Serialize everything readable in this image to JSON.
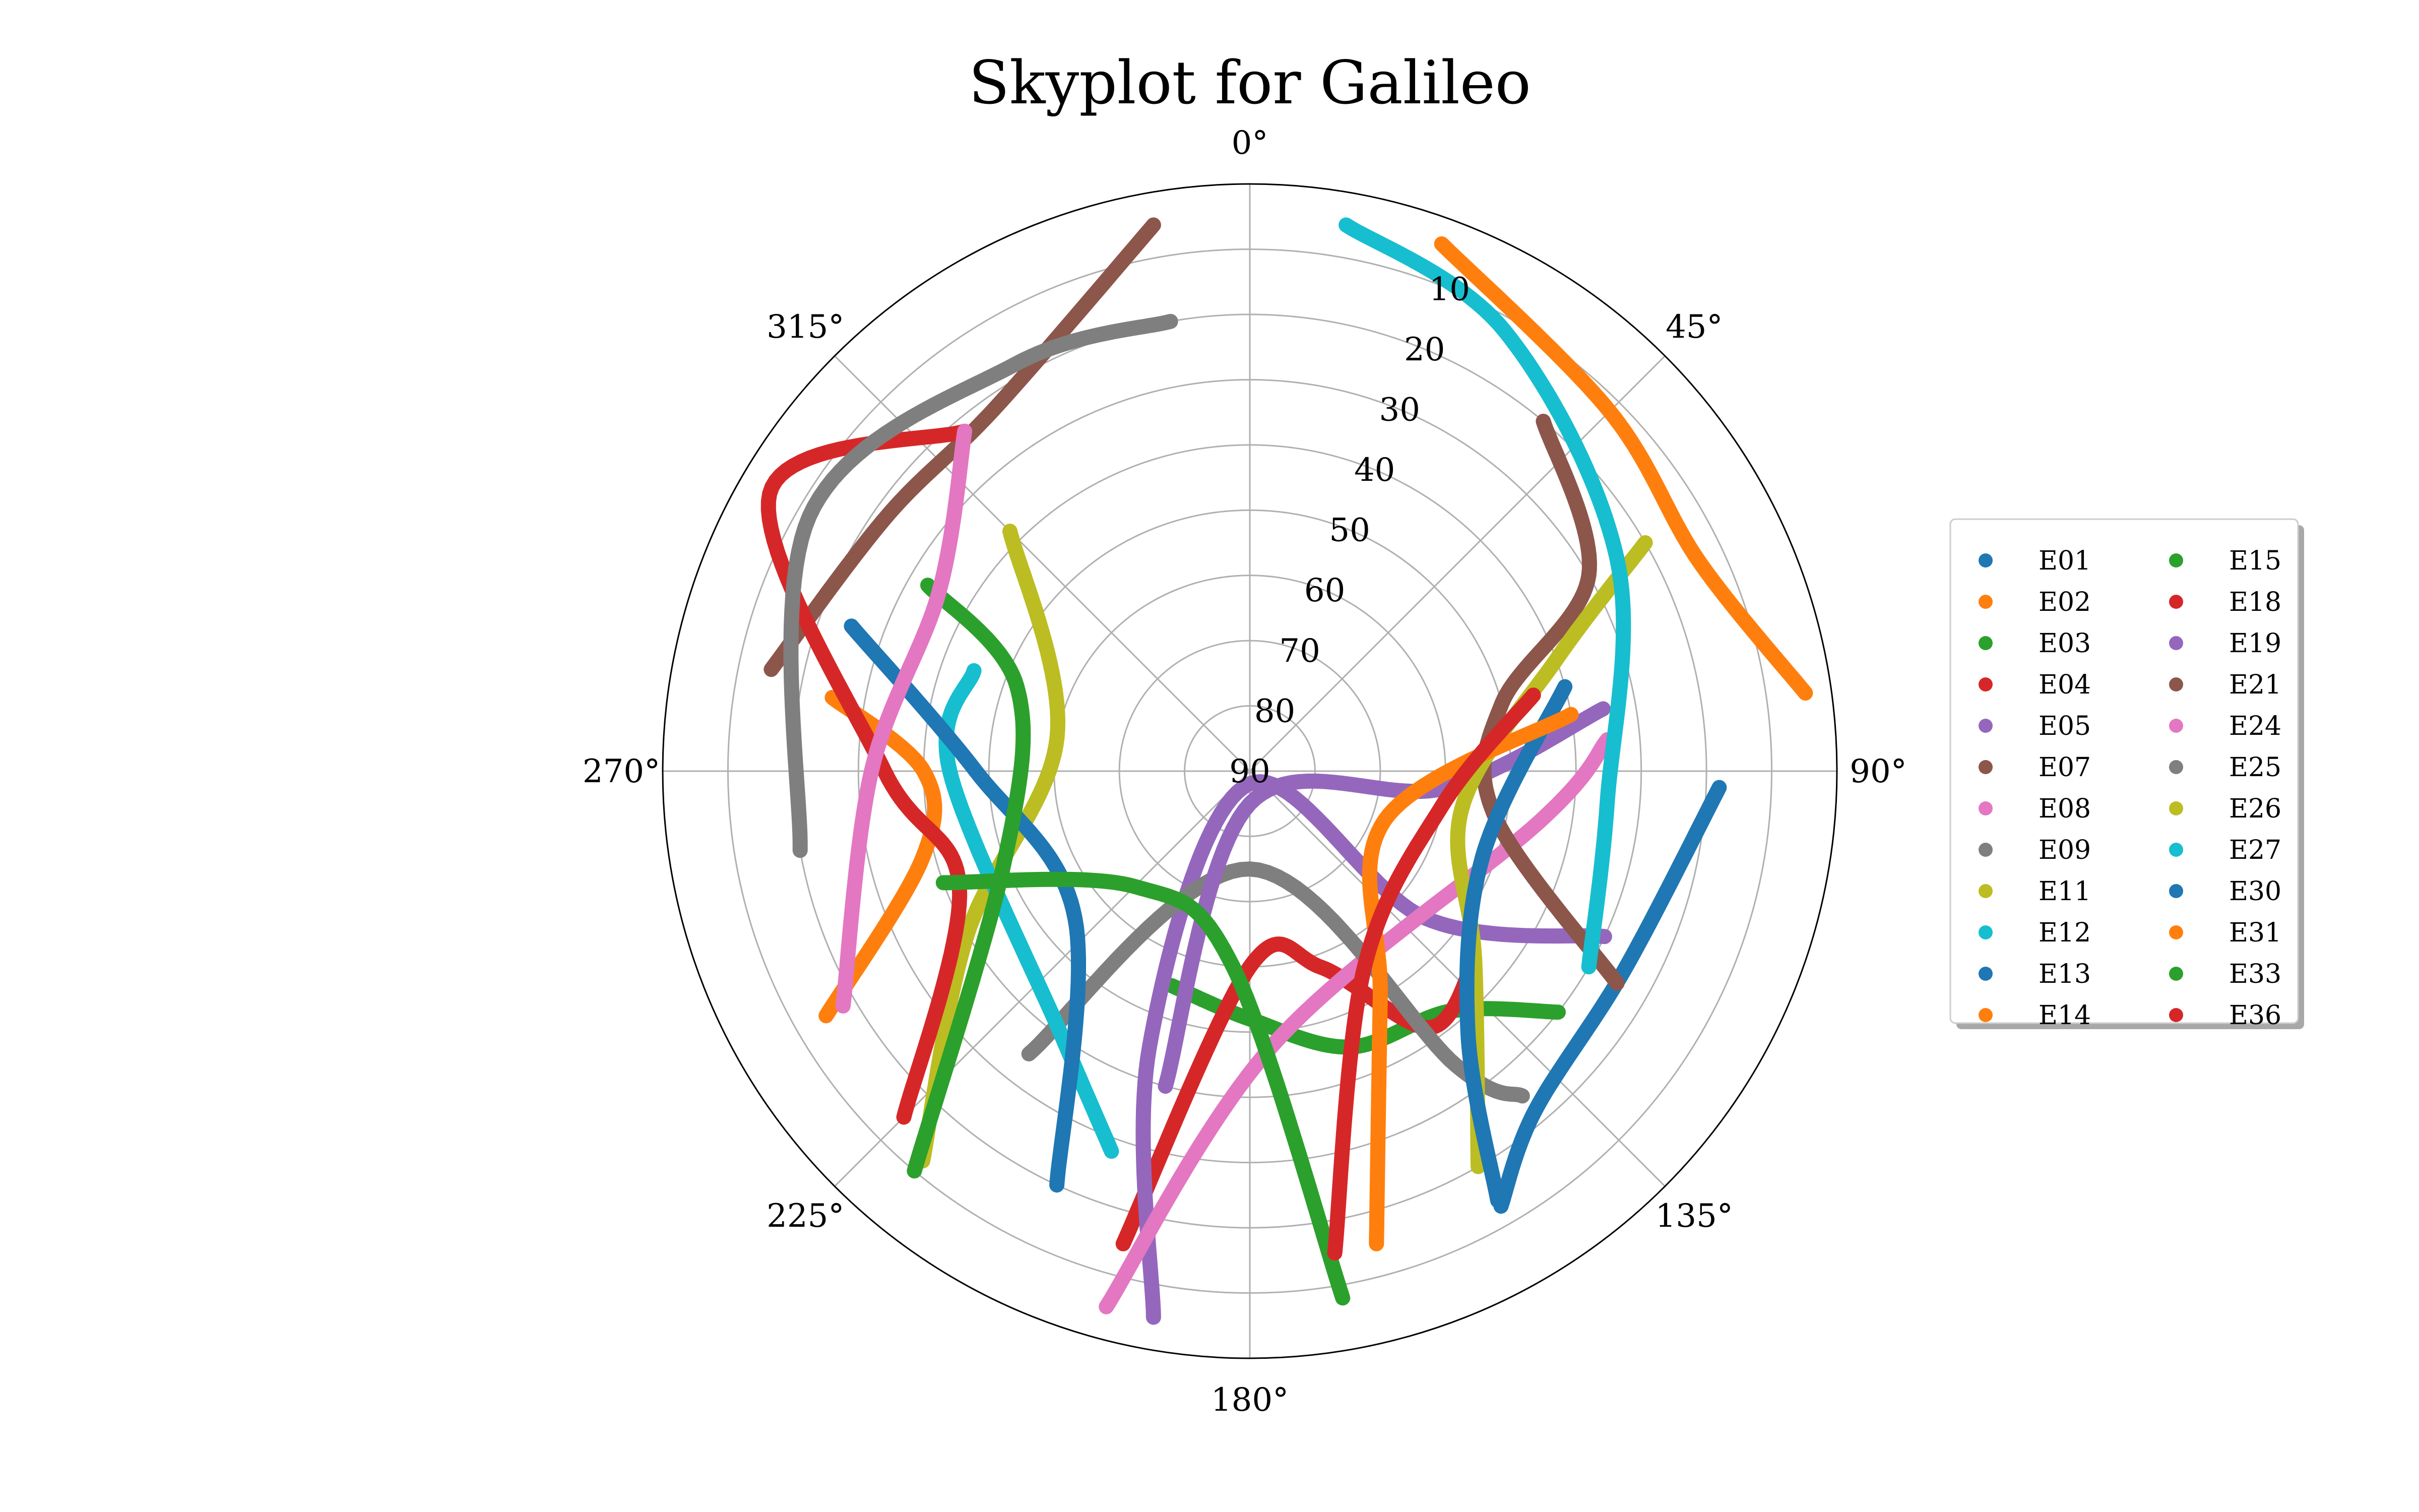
{
  "chart_data": {
    "type": "scatter",
    "projection": "polar-skyplot",
    "title": "Skyplot for Galileo",
    "theta_direction": "clockwise",
    "theta_zero": "north",
    "theta_ticks": [
      "0°",
      "45°",
      "90°",
      "135°",
      "180°",
      "225°",
      "270°",
      "315°"
    ],
    "r_ticks": [
      "10",
      "20",
      "30",
      "40",
      "50",
      "60",
      "70",
      "80",
      "90"
    ],
    "elevation_range": [
      0,
      90
    ],
    "grid": true,
    "legend": {
      "placement": "right",
      "ncol": 2
    },
    "series": [
      {
        "name": "E01",
        "color": "#1f77b4",
        "points": [
          [
            92,
            18
          ],
          [
            118,
            25
          ],
          [
            140,
            22
          ],
          [
            150,
            13
          ]
        ]
      },
      {
        "name": "E02",
        "color": "#ff7f0e",
        "points": [
          [
            20,
            4
          ],
          [
            45,
            12
          ],
          [
            65,
            14
          ],
          [
            82,
            4
          ]
        ]
      },
      {
        "name": "E03",
        "color": "#2ca02c",
        "points": [
          [
            200,
            55
          ],
          [
            180,
            52
          ],
          [
            160,
            45
          ],
          [
            140,
            42
          ],
          [
            128,
            30
          ]
        ]
      },
      {
        "name": "E04",
        "color": "#d62728",
        "points": [
          [
            195,
            15
          ],
          [
            180,
            60
          ],
          [
            160,
            58
          ],
          [
            145,
            42
          ],
          [
            130,
            45
          ]
        ]
      },
      {
        "name": "E05",
        "color": "#9467bd",
        "points": [
          [
            190,
            5
          ],
          [
            200,
            45
          ],
          [
            185,
            88
          ],
          [
            130,
            55
          ],
          [
            115,
            30
          ]
        ]
      },
      {
        "name": "E07",
        "color": "#8c564b",
        "points": [
          [
            282,
            15
          ],
          [
            305,
            22
          ],
          [
            325,
            22
          ],
          [
            350,
            5
          ]
        ]
      },
      {
        "name": "E08",
        "color": "#e377c2",
        "points": [
          [
            195,
            5
          ],
          [
            175,
            48
          ],
          [
            100,
            45
          ],
          [
            85,
            35
          ]
        ]
      },
      {
        "name": "E09",
        "color": "#7f7f7f",
        "points": [
          [
            218,
            35
          ],
          [
            180,
            75
          ],
          [
            145,
            35
          ],
          [
            140,
            25
          ]
        ]
      },
      {
        "name": "E11",
        "color": "#bcbd22",
        "points": [
          [
            220,
            12
          ],
          [
            240,
            40
          ],
          [
            280,
            60
          ],
          [
            315,
            38
          ]
        ]
      },
      {
        "name": "E12",
        "color": "#17becf",
        "points": [
          [
            290,
            45
          ],
          [
            270,
            44
          ],
          [
            215,
            40
          ],
          [
            200,
            28
          ]
        ]
      },
      {
        "name": "E13",
        "color": "#1f77b4",
        "points": [
          [
            205,
            20
          ],
          [
            230,
            55
          ],
          [
            270,
            48
          ],
          [
            290,
            25
          ]
        ]
      },
      {
        "name": "E14",
        "color": "#ff7f0e",
        "points": [
          [
            240,
            15
          ],
          [
            255,
            38
          ],
          [
            270,
            40
          ],
          [
            280,
            25
          ]
        ]
      },
      {
        "name": "E15",
        "color": "#2ca02c",
        "points": [
          [
            220,
            10
          ],
          [
            250,
            50
          ],
          [
            290,
            52
          ],
          [
            300,
            33
          ]
        ]
      },
      {
        "name": "E18",
        "color": "#d62728",
        "points": [
          [
            225,
            15
          ],
          [
            248,
            42
          ],
          [
            270,
            34
          ],
          [
            300,
            5
          ],
          [
            320,
            22
          ]
        ]
      },
      {
        "name": "E19",
        "color": "#9467bd",
        "points": [
          [
            195,
            40
          ],
          [
            180,
            85
          ],
          [
            95,
            60
          ],
          [
            80,
            35
          ]
        ]
      },
      {
        "name": "E21",
        "color": "#8c564b",
        "points": [
          [
            120,
            25
          ],
          [
            100,
            52
          ],
          [
            75,
            50
          ],
          [
            60,
            30
          ],
          [
            40,
            20
          ]
        ]
      },
      {
        "name": "E24",
        "color": "#e377c2",
        "points": [
          [
            240,
            18
          ],
          [
            270,
            32
          ],
          [
            300,
            35
          ],
          [
            320,
            22
          ]
        ]
      },
      {
        "name": "E25",
        "color": "#7f7f7f",
        "points": [
          [
            260,
            20
          ],
          [
            300,
            12
          ],
          [
            330,
            18
          ],
          [
            350,
            20
          ]
        ]
      },
      {
        "name": "E26",
        "color": "#bcbd22",
        "points": [
          [
            150,
            20
          ],
          [
            130,
            45
          ],
          [
            100,
            57
          ],
          [
            70,
            40
          ],
          [
            60,
            20
          ]
        ]
      },
      {
        "name": "E27",
        "color": "#17becf",
        "points": [
          [
            10,
            5
          ],
          [
            30,
            12
          ],
          [
            60,
            25
          ],
          [
            95,
            35
          ],
          [
            120,
            30
          ]
        ]
      },
      {
        "name": "E30",
        "color": "#1f77b4",
        "points": [
          [
            150,
            14
          ],
          [
            140,
            38
          ],
          [
            110,
            52
          ],
          [
            75,
            40
          ]
        ]
      },
      {
        "name": "E31",
        "color": "#ff7f0e",
        "points": [
          [
            165,
            15
          ],
          [
            150,
            50
          ],
          [
            110,
            68
          ],
          [
            80,
            40
          ]
        ]
      },
      {
        "name": "E33",
        "color": "#2ca02c",
        "points": [
          [
            170,
            8
          ],
          [
            185,
            60
          ],
          [
            225,
            65
          ],
          [
            250,
            40
          ]
        ]
      },
      {
        "name": "E36",
        "color": "#d62728",
        "points": [
          [
            170,
            15
          ],
          [
            150,
            55
          ],
          [
            100,
            60
          ],
          [
            75,
            45
          ]
        ]
      }
    ]
  }
}
